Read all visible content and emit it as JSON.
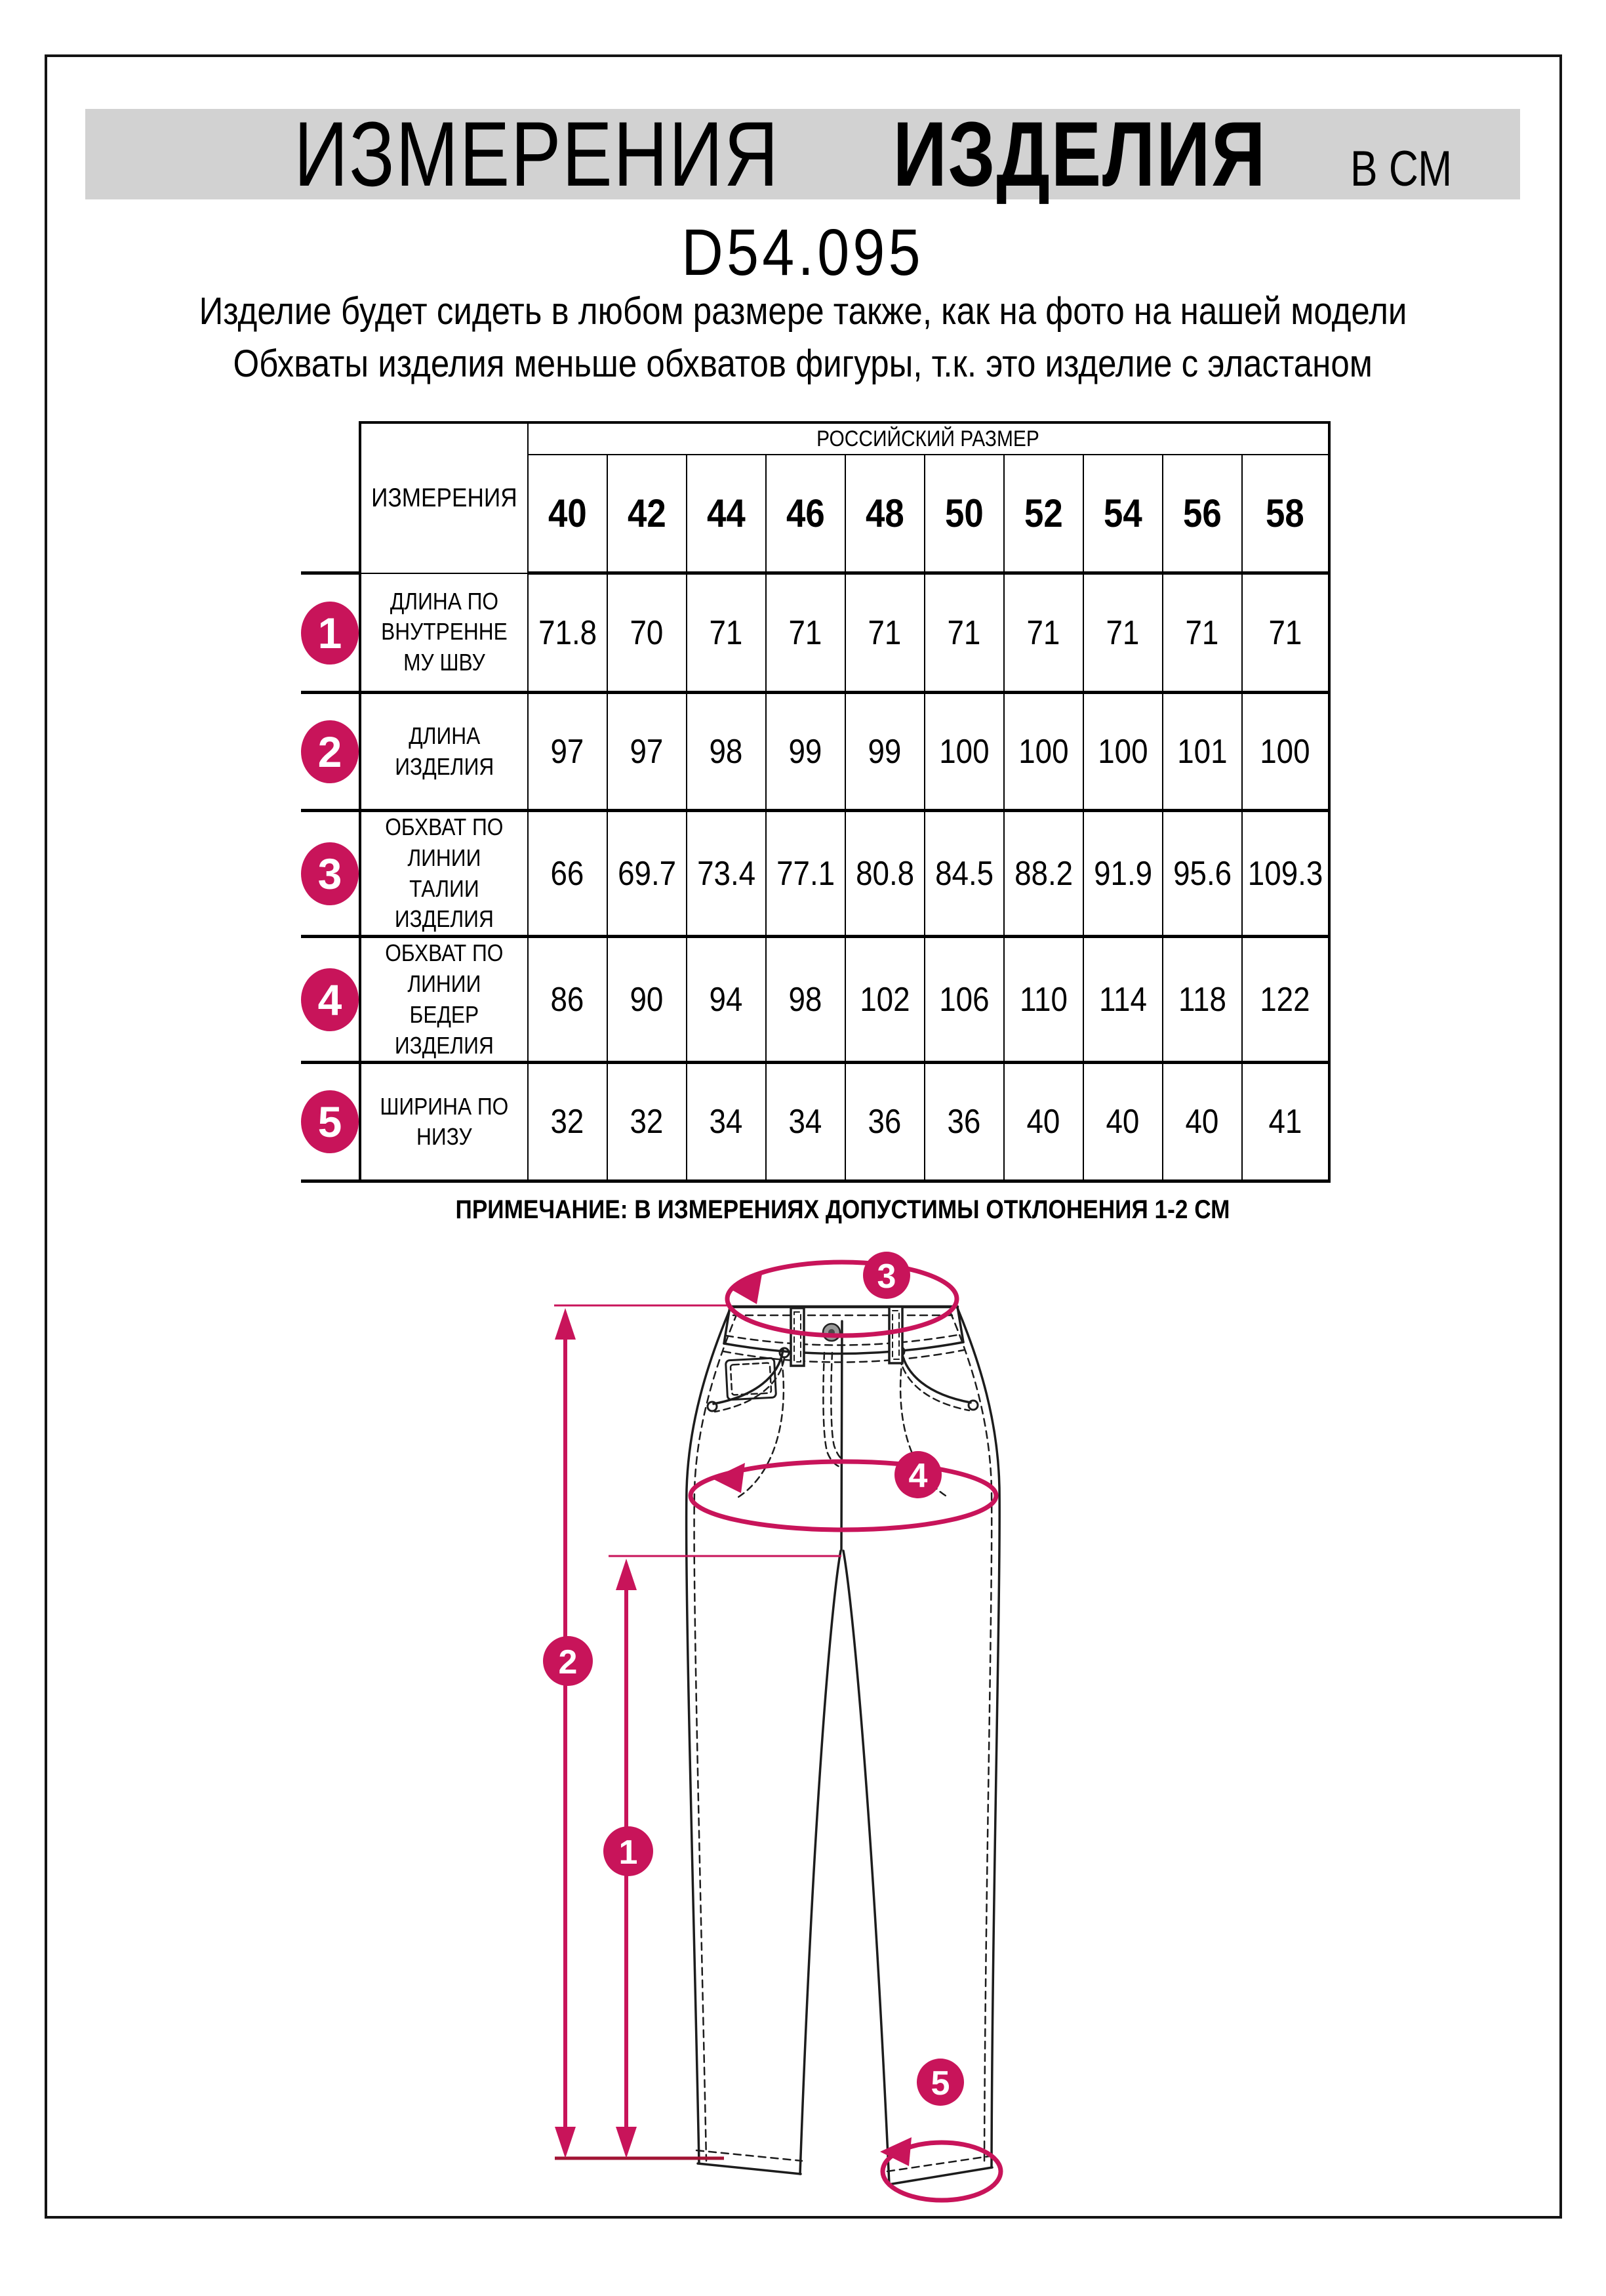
{
  "page": {
    "title_word1": "ИЗМЕРЕНИЯ",
    "title_word2": "ИЗДЕЛИЯ",
    "title_unit": "В СМ",
    "product_code": "D54.095",
    "description_lines": [
      "Изделие будет сидеть в любом размере также, как на фото на нашей модели",
      "Обхваты изделия меньше обхватов фигуры, т.к. это изделие с эластаном"
    ],
    "note": "ПРИМЕЧАНИЕ: В ИЗМЕРЕНИЯХ ДОПУСТИМЫ ОТКЛОНЕНИЯ 1-2 СМ"
  },
  "table": {
    "corner_label": "ИЗМЕРЕНИЯ",
    "size_group_header": "РОССИЙСКИЙ РАЗМЕР",
    "sizes": [
      "40",
      "42",
      "44",
      "46",
      "48",
      "50",
      "52",
      "54",
      "56",
      "58"
    ],
    "rows": [
      {
        "marker": "1",
        "label": "ДЛИНА ПО\nВНУТРЕННЕ\nМУ ШВУ",
        "values": [
          "71.8",
          "70",
          "71",
          "71",
          "71",
          "71",
          "71",
          "71",
          "71",
          "71"
        ]
      },
      {
        "marker": "2",
        "label": "ДЛИНА\nИЗДЕЛИЯ",
        "values": [
          "97",
          "97",
          "98",
          "99",
          "99",
          "100",
          "100",
          "100",
          "101",
          "100"
        ]
      },
      {
        "marker": "3",
        "label": "ОБХВАТ ПО\nЛИНИИ\nТАЛИИ\nИЗДЕЛИЯ",
        "values": [
          "66",
          "69.7",
          "73.4",
          "77.1",
          "80.8",
          "84.5",
          "88.2",
          "91.9",
          "95.6",
          "109.3"
        ]
      },
      {
        "marker": "4",
        "label": "ОБХВАТ ПО\nЛИНИИ\nБЕДЕР\nИЗДЕЛИЯ",
        "values": [
          "86",
          "90",
          "94",
          "98",
          "102",
          "106",
          "110",
          "114",
          "118",
          "122"
        ]
      },
      {
        "marker": "5",
        "label": "ШИРИНА ПО\nНИЗУ",
        "values": [
          "32",
          "32",
          "34",
          "34",
          "36",
          "36",
          "40",
          "40",
          "40",
          "41"
        ]
      }
    ]
  },
  "diagram": {
    "markers": [
      "1",
      "2",
      "3",
      "4",
      "5"
    ],
    "accent_color": "#c8145a",
    "baseline_color": "#a11434",
    "title_band_bg": "#d2d2d2"
  }
}
